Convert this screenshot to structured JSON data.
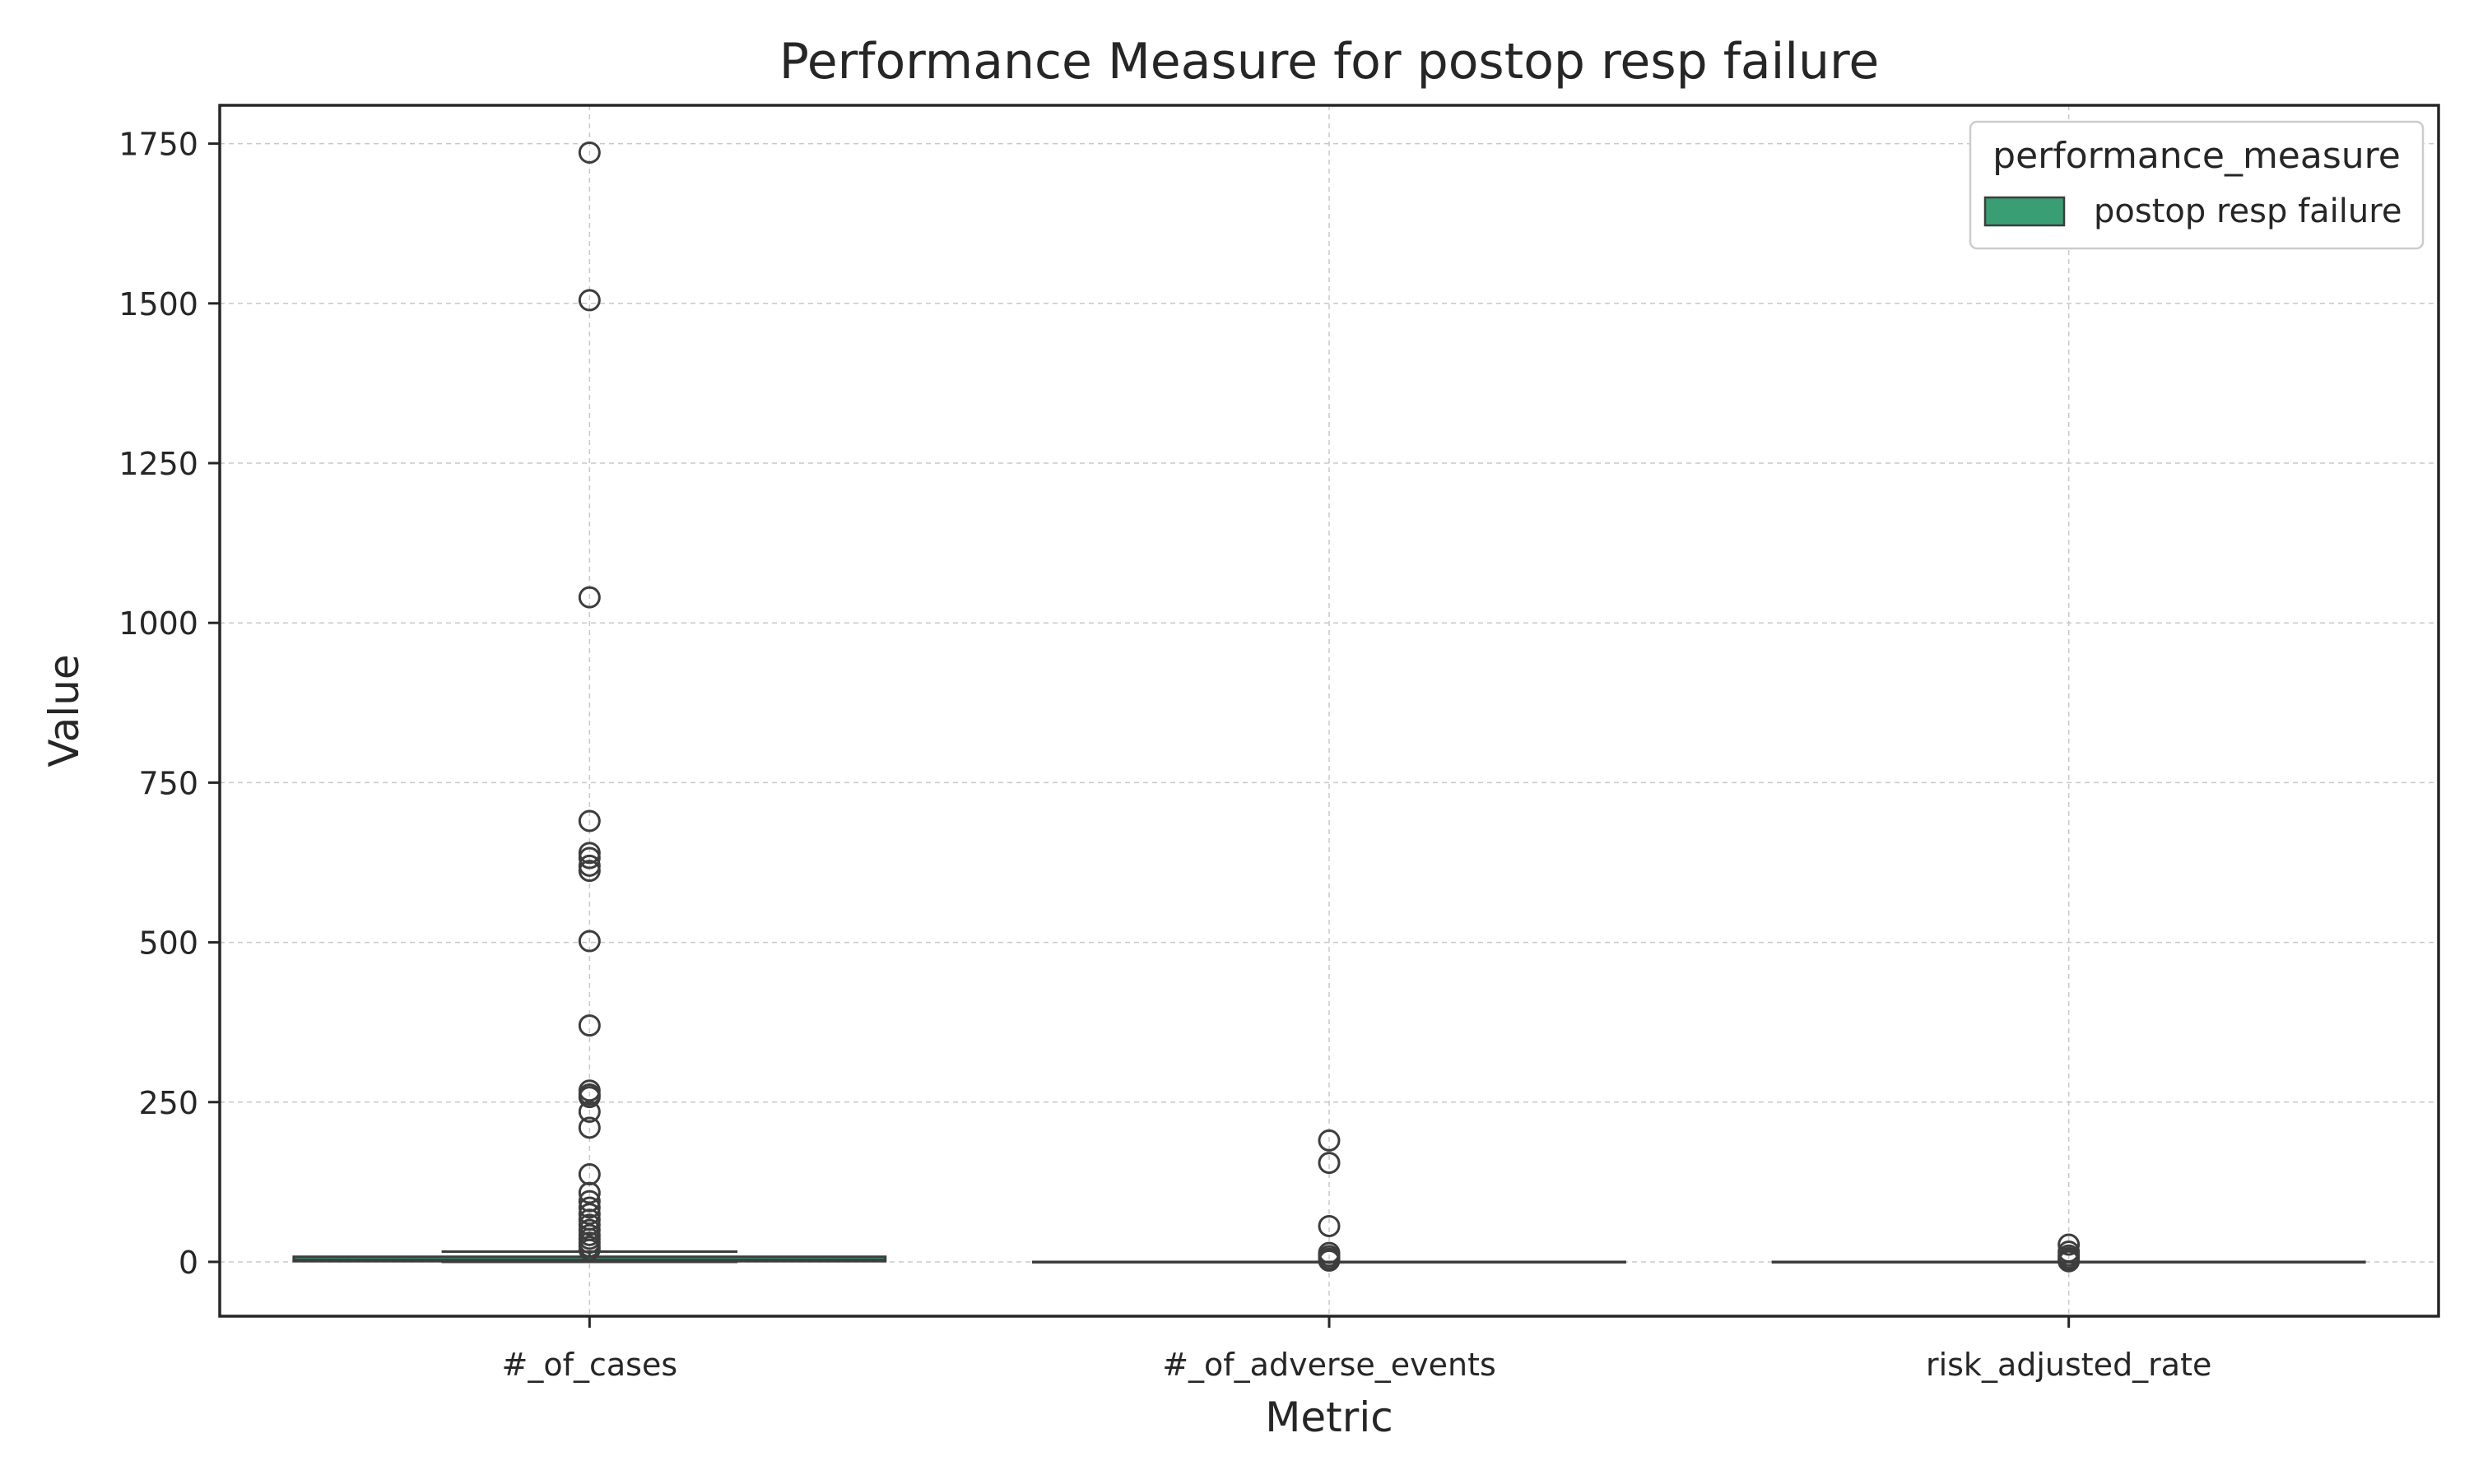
{
  "chart_data": {
    "type": "box",
    "title": "Performance Measure for postop resp failure",
    "xlabel": "Metric",
    "ylabel": "Value",
    "categories": [
      "#_of_cases",
      "#_of_adverse_events",
      "risk_adjusted_rate"
    ],
    "ylim": [
      -85,
      1810
    ],
    "yticks": [
      0,
      250,
      500,
      750,
      1000,
      1250,
      1500,
      1750
    ],
    "grid": true,
    "legend": {
      "title": "performance_measure",
      "placement": "top-right",
      "entries": [
        "postop resp failure"
      ]
    },
    "colors": {
      "box_fill": "#3a9e74",
      "box_edge": "#3d3d3d",
      "axis": "#262626"
    },
    "series": [
      {
        "name": "postop resp failure",
        "boxes": [
          {
            "category": "#_of_cases",
            "whisker_low": 0,
            "q1": 1,
            "median": 3,
            "q3": 8,
            "whisker_high": 16,
            "outliers": [
              1736,
              1505,
              1040,
              690,
              640,
              632,
              620,
              612,
              502,
              370,
              268,
              262,
              258,
              235,
              210,
              137,
              108,
              95,
              85,
              75,
              66,
              58,
              50,
              42,
              36,
              30,
              24,
              19
            ]
          },
          {
            "category": "#_of_adverse_events",
            "whisker_low": 0,
            "q1": 0,
            "median": 0,
            "q3": 0,
            "whisker_high": 0,
            "outliers": [
              190,
              155,
              56,
              14,
              9,
              5,
              2
            ]
          },
          {
            "category": "risk_adjusted_rate",
            "whisker_low": 0,
            "q1": 0,
            "median": 0,
            "q3": 0,
            "whisker_high": 0,
            "outliers": [
              27,
              16,
              10,
              6,
              3,
              1
            ]
          }
        ]
      }
    ]
  }
}
